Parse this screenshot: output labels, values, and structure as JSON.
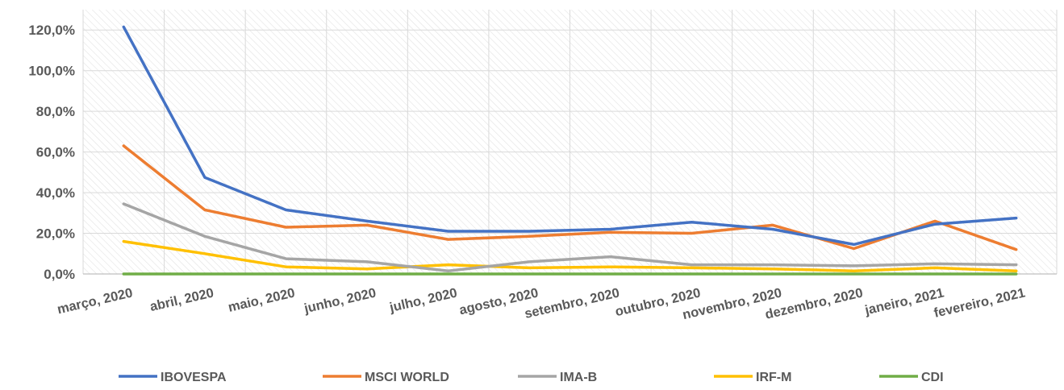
{
  "chart_data": {
    "type": "line",
    "categories": [
      "março, 2020",
      "abril, 2020",
      "maio, 2020",
      "junho, 2020",
      "julho, 2020",
      "agosto, 2020",
      "setembro, 2020",
      "outubro, 2020",
      "novembro, 2020",
      "dezembro, 2020",
      "janeiro, 2021",
      "fevereiro, 2021"
    ],
    "y_ticks": [
      "0,0%",
      "20,0%",
      "40,0%",
      "60,0%",
      "80,0%",
      "100,0%",
      "120,0%"
    ],
    "ylim": [
      0,
      120
    ],
    "grid": true,
    "legend_position": "bottom",
    "series": [
      {
        "name": "IBOVESPA",
        "color": "#4472C4",
        "values": [
          121.5,
          47.5,
          31.5,
          26.0,
          21.0,
          21.0,
          22.0,
          25.5,
          22.0,
          14.5,
          24.5,
          27.5
        ]
      },
      {
        "name": "MSCI WORLD",
        "color": "#ED7D31",
        "values": [
          63.0,
          31.5,
          23.0,
          24.0,
          17.0,
          18.5,
          20.5,
          20.0,
          24.0,
          12.5,
          26.0,
          12.0
        ]
      },
      {
        "name": "IMA-B",
        "color": "#A5A5A5",
        "values": [
          34.5,
          18.5,
          7.5,
          6.0,
          1.5,
          6.0,
          8.5,
          4.5,
          4.5,
          4.0,
          5.0,
          4.5
        ]
      },
      {
        "name": "IRF-M",
        "color": "#FFC000",
        "values": [
          16.0,
          10.0,
          3.5,
          2.5,
          4.5,
          3.0,
          3.5,
          3.0,
          2.5,
          1.5,
          3.0,
          1.5
        ]
      },
      {
        "name": "CDI",
        "color": "#70AD47",
        "values": [
          0.0,
          0.0,
          0.0,
          0.0,
          0.0,
          0.0,
          0.0,
          0.0,
          0.0,
          0.0,
          0.0,
          0.0
        ]
      }
    ]
  }
}
